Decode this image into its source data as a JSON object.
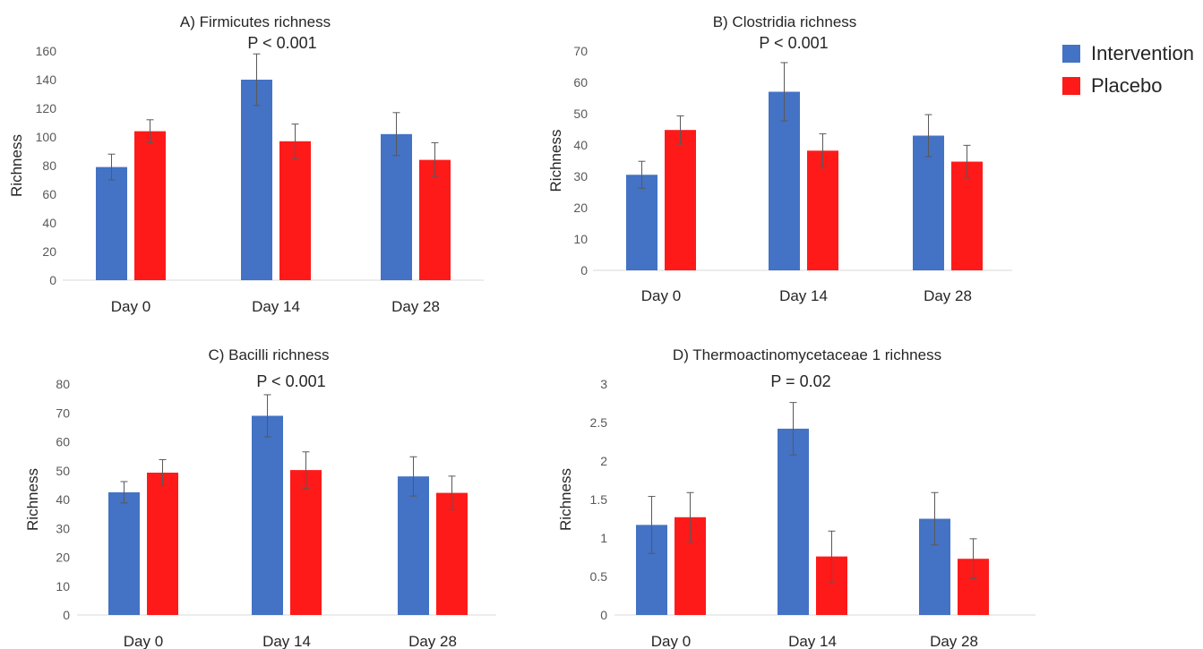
{
  "legend": {
    "items": [
      {
        "label": "Intervention",
        "color": "#4472C4"
      },
      {
        "label": "Placebo",
        "color": "#FF1A1A"
      }
    ]
  },
  "chart_data": [
    {
      "type": "bar",
      "title": "A) Firmicutes richness",
      "annotation": "P < 0.001",
      "ylabel": "Richness",
      "categories": [
        "Day 0",
        "Day 14",
        "Day 28"
      ],
      "ylim": [
        0,
        160
      ],
      "yticks": [
        "0",
        "20",
        "40",
        "60",
        "80",
        "100",
        "120",
        "140",
        "160"
      ],
      "series": [
        {
          "name": "Intervention",
          "color": "#4472C4",
          "values": [
            79,
            140,
            102
          ],
          "error": [
            9,
            18,
            15
          ]
        },
        {
          "name": "Placebo",
          "color": "#FF1A1A",
          "values": [
            104,
            97,
            84
          ],
          "error": [
            8,
            12,
            12
          ]
        }
      ]
    },
    {
      "type": "bar",
      "title": "B) Clostridia richness",
      "annotation": "P < 0.001",
      "ylabel": "Richness",
      "categories": [
        "Day 0",
        "Day 14",
        "Day 28"
      ],
      "ylim": [
        0,
        70
      ],
      "yticks": [
        "0",
        "10",
        "20",
        "30",
        "40",
        "50",
        "60",
        "70"
      ],
      "series": [
        {
          "name": "Intervention",
          "color": "#4472C4",
          "values": [
            30.5,
            57,
            43
          ],
          "error": [
            4.3,
            9.3,
            6.7
          ]
        },
        {
          "name": "Placebo",
          "color": "#FF1A1A",
          "values": [
            44.8,
            38.2,
            34.7
          ],
          "error": [
            4.5,
            5.4,
            5.2
          ]
        }
      ]
    },
    {
      "type": "bar",
      "title": "C) Bacilli richness",
      "annotation": "P < 0.001",
      "ylabel": "Richness",
      "categories": [
        "Day 0",
        "Day 14",
        "Day 28"
      ],
      "ylim": [
        0,
        80
      ],
      "yticks": [
        "0",
        "10",
        "20",
        "30",
        "40",
        "50",
        "60",
        "70",
        "80"
      ],
      "series": [
        {
          "name": "Intervention",
          "color": "#4472C4",
          "values": [
            42.5,
            69,
            48
          ],
          "error": [
            3.7,
            7.3,
            6.8
          ]
        },
        {
          "name": "Placebo",
          "color": "#FF1A1A",
          "values": [
            49.3,
            50.2,
            42.3
          ],
          "error": [
            4.5,
            6.3,
            5.8
          ]
        }
      ]
    },
    {
      "type": "bar",
      "title": "D) Thermoactinomycetaceae 1 richness",
      "annotation": "P = 0.02",
      "ylabel": "Richness",
      "categories": [
        "Day 0",
        "Day 14",
        "Day 28"
      ],
      "ylim": [
        0,
        3
      ],
      "yticks": [
        "0",
        "0.5",
        "1",
        "1.5",
        "2",
        "2.5",
        "3"
      ],
      "series": [
        {
          "name": "Intervention",
          "color": "#4472C4",
          "values": [
            1.17,
            2.42,
            1.25
          ],
          "error": [
            0.37,
            0.34,
            0.34
          ]
        },
        {
          "name": "Placebo",
          "color": "#FF1A1A",
          "values": [
            1.27,
            0.76,
            0.73
          ],
          "error": [
            0.32,
            0.33,
            0.26
          ]
        }
      ]
    }
  ]
}
